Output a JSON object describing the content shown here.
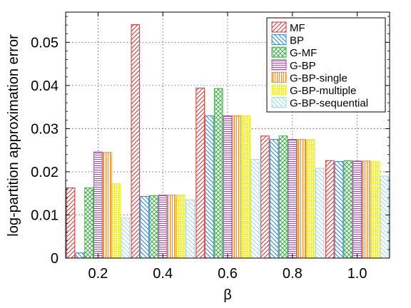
{
  "chart_data": {
    "type": "bar",
    "xlabel": "β",
    "ylabel": "log-partition approximation error",
    "categories": [
      "0.2",
      "0.4",
      "0.6",
      "0.8",
      "1.0"
    ],
    "ylim": [
      0,
      0.057
    ],
    "yticks": [
      0,
      0.01,
      0.02,
      0.03,
      0.04,
      0.05
    ],
    "ytick_labels": [
      "0",
      "0.01",
      "0.02",
      "0.03",
      "0.04",
      "0.05"
    ],
    "grid": true,
    "legend_position": "top-right",
    "series": [
      {
        "name": "MF",
        "color": "#e8312d",
        "pattern": "diag-right",
        "values": [
          0.0163,
          0.0541,
          0.0394,
          0.0283,
          0.0226
        ]
      },
      {
        "name": "BP",
        "color": "#3c87c6",
        "pattern": "diag-left",
        "values": [
          0.0012,
          0.0143,
          0.033,
          0.0275,
          0.0224
        ]
      },
      {
        "name": "G-MF",
        "color": "#40ad48",
        "pattern": "cross",
        "values": [
          0.0163,
          0.0145,
          0.0393,
          0.0283,
          0.0226
        ]
      },
      {
        "name": "G-BP",
        "color": "#9d4fb0",
        "pattern": "horizontal",
        "values": [
          0.0246,
          0.0146,
          0.033,
          0.0275,
          0.0225
        ]
      },
      {
        "name": "G-BP-single",
        "color": "#ff8a12",
        "pattern": "vertical",
        "values": [
          0.0245,
          0.0146,
          0.033,
          0.0275,
          0.0225
        ]
      },
      {
        "name": "G-BP-multiple",
        "color": "#f2f21a",
        "pattern": "grid",
        "values": [
          0.0173,
          0.0146,
          0.033,
          0.0275,
          0.0224
        ]
      },
      {
        "name": "G-BP-sequential",
        "color": "#a8d6e6",
        "pattern": "diag-left",
        "values": [
          0.0093,
          0.0135,
          0.0229,
          0.0208,
          0.019
        ]
      }
    ]
  }
}
